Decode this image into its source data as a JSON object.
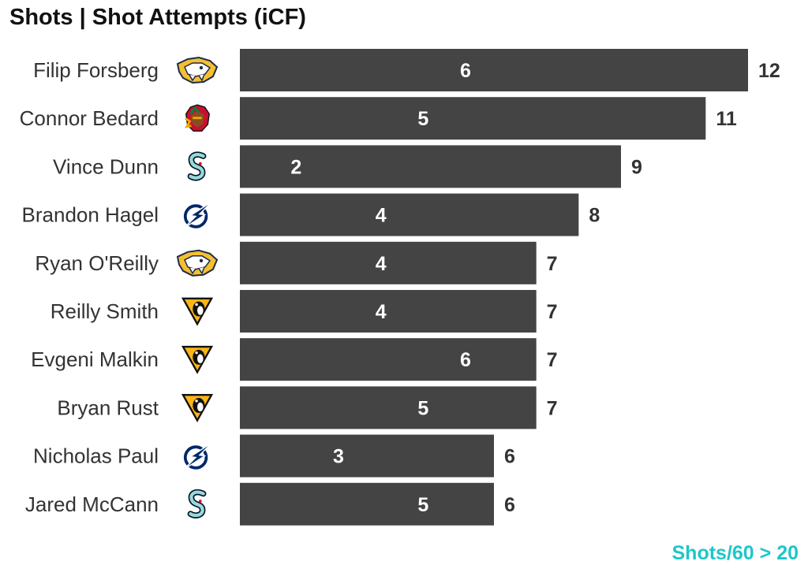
{
  "title": "Shots | Shot Attempts (iCF)",
  "footnote": "Shots/60 > 20",
  "colors": {
    "bar": "#444444",
    "footnote": "#1cc7c9",
    "title": "#111111",
    "label": "#333333"
  },
  "chart_data": {
    "type": "bar",
    "orientation": "horizontal",
    "title": "Shots | Shot Attempts (iCF)",
    "note": "Shots/60 > 20",
    "categories": [
      "Filip Forsberg",
      "Connor Bedard",
      "Vince Dunn",
      "Brandon Hagel",
      "Ryan O'Reilly",
      "Reilly Smith",
      "Evgeni Malkin",
      "Bryan Rust",
      "Nicholas Paul",
      "Jared McCann"
    ],
    "teams": [
      "predators-logo-icon",
      "blackhawks-logo-icon",
      "kraken-logo-icon",
      "lightning-logo-icon",
      "predators-logo-icon",
      "penguins-logo-icon",
      "penguins-logo-icon",
      "penguins-logo-icon",
      "lightning-logo-icon",
      "kraken-logo-icon"
    ],
    "series": [
      {
        "name": "Shots",
        "values": [
          6,
          5,
          2,
          4,
          4,
          4,
          6,
          5,
          3,
          5
        ]
      },
      {
        "name": "Shot Attempts (iCF)",
        "values": [
          12,
          11,
          9,
          8,
          7,
          7,
          7,
          7,
          6,
          6
        ]
      }
    ],
    "xlim": [
      0,
      12
    ],
    "grid": false,
    "legend": "none"
  }
}
